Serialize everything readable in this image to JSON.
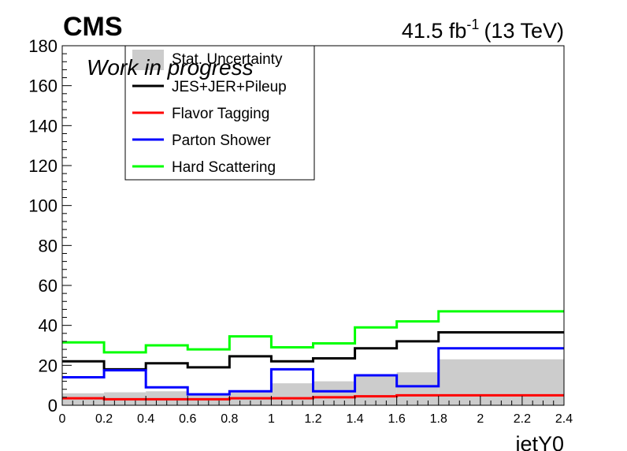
{
  "header": {
    "experiment": "CMS",
    "status": "Work in progress",
    "lumi_value": "41.5 fb",
    "lumi_exp": "-1",
    "energy": "(13 TeV)"
  },
  "chart_data": {
    "type": "step",
    "xlabel": "jetY0",
    "xlim": [
      0,
      2.4
    ],
    "ylim": [
      0,
      180
    ],
    "x_ticks": [
      0,
      0.2,
      0.4,
      0.6,
      0.8,
      1,
      1.2,
      1.4,
      1.6,
      1.8,
      2,
      2.2,
      2.4
    ],
    "y_ticks": [
      0,
      20,
      40,
      60,
      80,
      100,
      120,
      140,
      160,
      180
    ],
    "bin_edges": [
      0,
      0.2,
      0.4,
      0.6,
      0.8,
      1.0,
      1.2,
      1.4,
      1.6,
      1.8,
      2.4
    ],
    "legend_position": "top-left",
    "stat_uncertainty": {
      "name": "Stat. Uncertainty",
      "color": "#cccccc",
      "values": [
        6,
        6.5,
        7,
        5.5,
        6.5,
        11,
        12,
        15,
        16.5,
        23
      ]
    },
    "series": [
      {
        "name": "JES+JER+Pileup",
        "color": "#000000",
        "values": [
          22,
          18,
          21,
          19,
          24.5,
          22,
          23.5,
          28.5,
          32,
          36.5
        ]
      },
      {
        "name": "Flavor Tagging",
        "color": "#ff0000",
        "values": [
          3.5,
          3,
          3,
          3,
          3.5,
          3.5,
          4,
          4.5,
          5,
          5
        ]
      },
      {
        "name": "Parton Shower",
        "color": "#0000ff",
        "values": [
          14,
          17.5,
          9,
          5.5,
          7,
          18,
          7,
          15,
          9.5,
          28.5
        ]
      },
      {
        "name": "Hard Scattering",
        "color": "#00ff00",
        "values": [
          31.5,
          26.5,
          30,
          28,
          34.5,
          29,
          31,
          39,
          42,
          47
        ]
      }
    ]
  }
}
